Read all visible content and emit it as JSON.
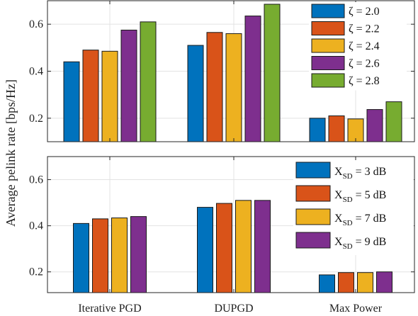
{
  "ylabel": "Average pelink rate [bps/Hz]",
  "chart_data": [
    {
      "type": "bar",
      "categories": [
        "Iterative PGD",
        "DUPGD",
        "Max Power"
      ],
      "show_category_labels": false,
      "ylim": [
        0.1,
        0.7
      ],
      "yticks": [
        0.2,
        0.4,
        0.6
      ],
      "grid": true,
      "legend_position": "top-right",
      "series": [
        {
          "name": "ζ = 2.0",
          "color": "#0072BD",
          "values": [
            0.44,
            0.51,
            0.2
          ]
        },
        {
          "name": "ζ = 2.2",
          "color": "#D95319",
          "values": [
            0.49,
            0.565,
            0.21
          ]
        },
        {
          "name": "ζ = 2.4",
          "color": "#EDB120",
          "values": [
            0.485,
            0.56,
            0.197
          ]
        },
        {
          "name": "ζ = 2.6",
          "color": "#7E2F8E",
          "values": [
            0.575,
            0.635,
            0.237
          ]
        },
        {
          "name": "ζ = 2.8",
          "color": "#77AC30",
          "values": [
            0.61,
            0.685,
            0.27
          ]
        }
      ]
    },
    {
      "type": "bar",
      "categories": [
        "Iterative PGD",
        "DUPGD",
        "Max Power"
      ],
      "show_category_labels": true,
      "ylim": [
        0.11,
        0.7
      ],
      "yticks": [
        0.2,
        0.4,
        0.6
      ],
      "grid": true,
      "legend_position": "top-right",
      "series": [
        {
          "name": "X",
          "sub": "SD",
          "suffix": " = 3 dB",
          "color": "#0072BD",
          "values": [
            0.41,
            0.48,
            0.187
          ]
        },
        {
          "name": "X",
          "sub": "SD",
          "suffix": " = 5 dB",
          "color": "#D95319",
          "values": [
            0.43,
            0.497,
            0.197
          ]
        },
        {
          "name": "X",
          "sub": "SD",
          "suffix": " = 7 dB",
          "color": "#EDB120",
          "values": [
            0.434,
            0.51,
            0.197
          ]
        },
        {
          "name": "X",
          "sub": "SD",
          "suffix": " = 9 dB",
          "color": "#7E2F8E",
          "values": [
            0.44,
            0.51,
            0.2
          ]
        }
      ]
    }
  ]
}
